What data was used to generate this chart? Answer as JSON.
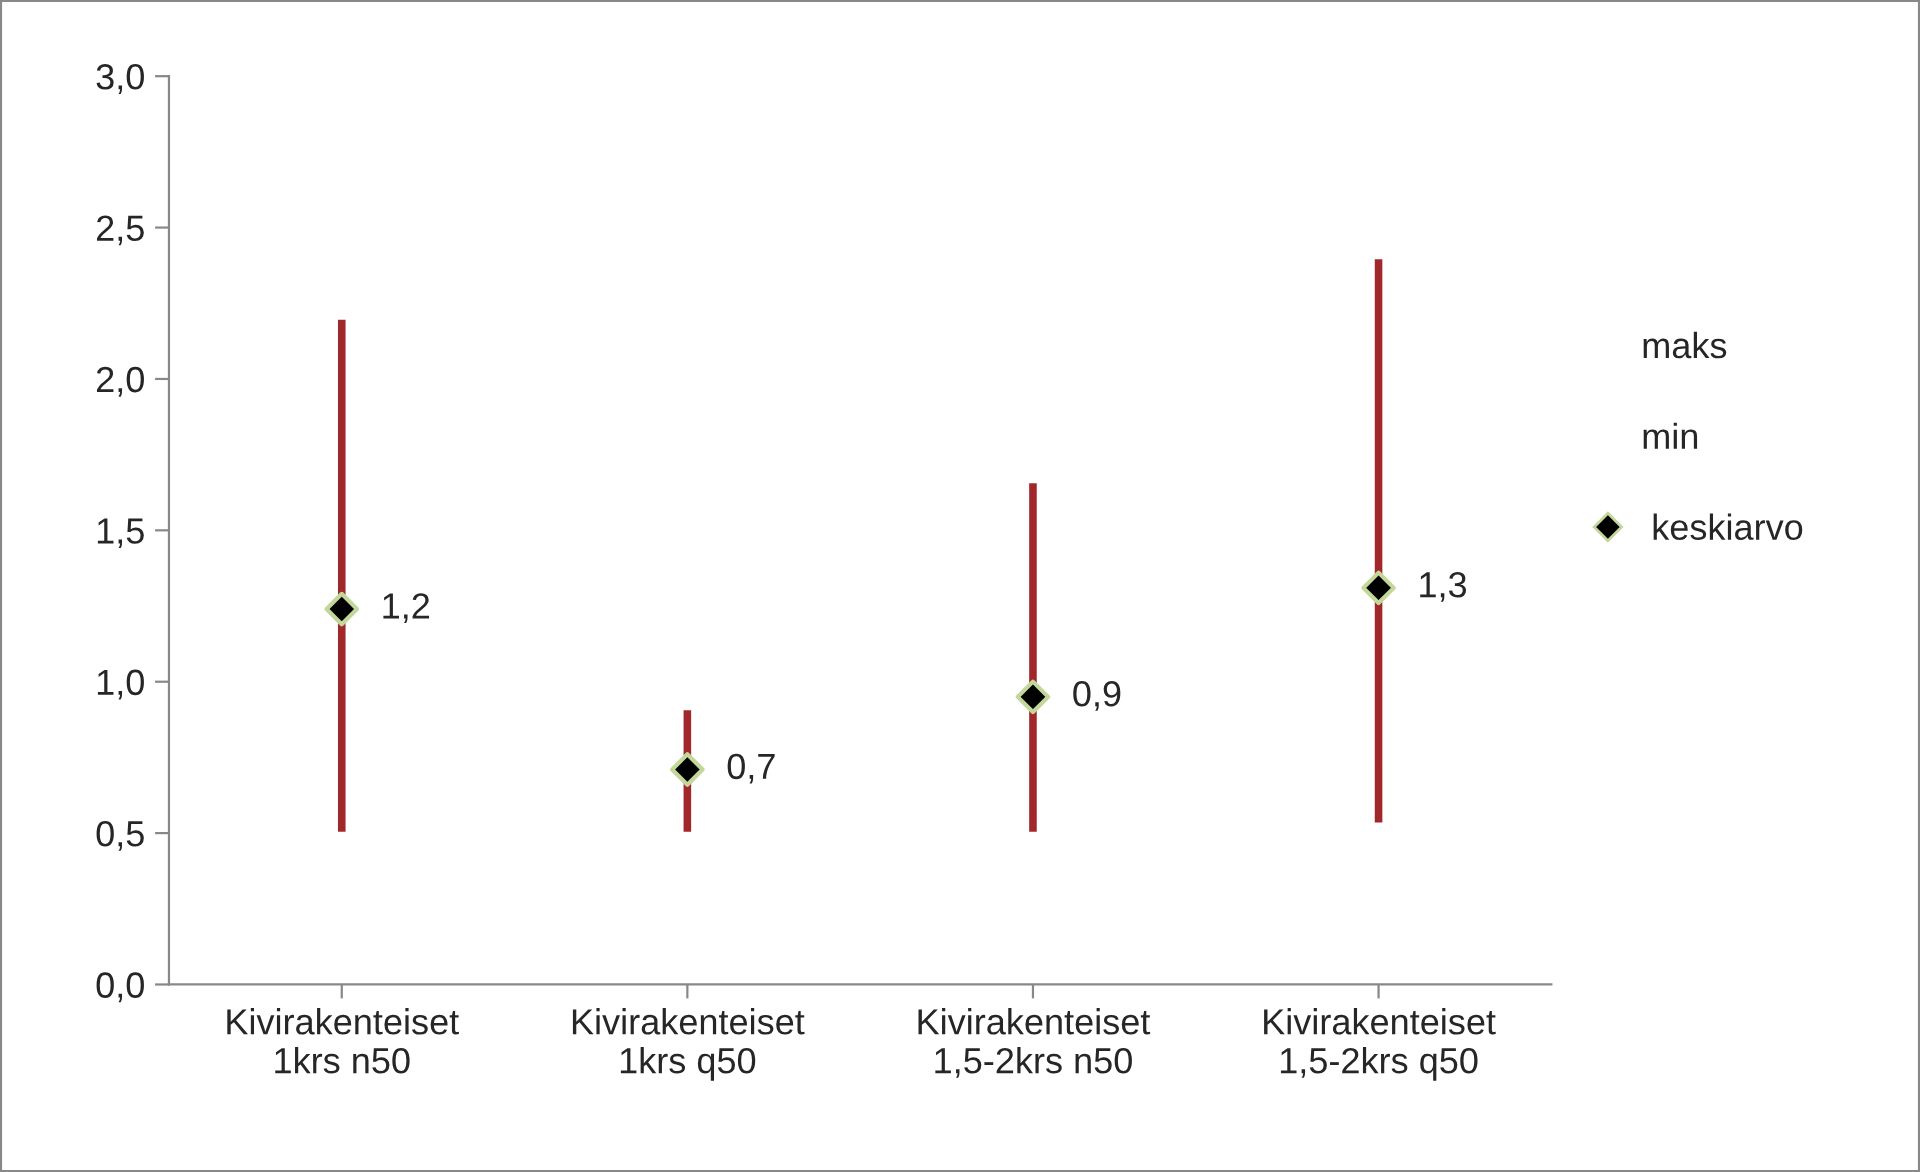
{
  "chart_data": {
    "type": "bar",
    "categories": [
      "Kivirakenteiset\n1krs n50",
      "Kivirakenteiset\n1krs q50",
      "Kivirakenteiset\n1,5-2krs n50",
      "Kivirakenteiset\n1,5-2krs q50"
    ],
    "series": [
      {
        "color": "#a0282a",
        "base": [
          0.5,
          0.5,
          0.5,
          0.53
        ],
        "values": [
          1.7,
          0.41,
          1.16,
          1.87
        ]
      },
      {
        "name": "keskiarvo",
        "type": "scatter",
        "color": "#000000",
        "marker": "diamond",
        "values": [
          1.24,
          0.71,
          0.95,
          1.31
        ],
        "value_labels": [
          "1,2",
          "0,7",
          "0,9",
          "1,3"
        ]
      }
    ],
    "annotations": [
      "maks",
      "min"
    ],
    "ylim": [
      0,
      3
    ],
    "yticks": [
      {
        "value": 0,
        "label": "0,0"
      },
      {
        "value": 0.5,
        "label": "0,5"
      },
      {
        "value": 1,
        "label": "1,0"
      },
      {
        "value": 1.5,
        "label": "1,5"
      },
      {
        "value": 2,
        "label": "2,0"
      },
      {
        "value": 2.5,
        "label": "2,5"
      },
      {
        "value": 3,
        "label": "3,0"
      }
    ],
    "legend": "right"
  }
}
